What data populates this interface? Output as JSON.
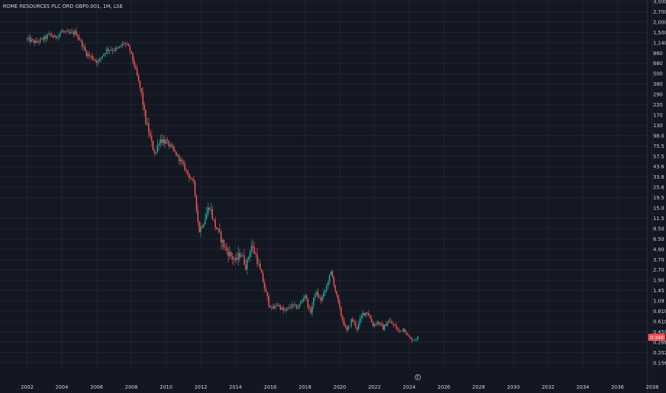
{
  "chart_data": {
    "type": "candlestick",
    "title": "ROME RESOURCES PLC ORD GBP0.001, 1M, LSE",
    "y_scale": "log",
    "grid": true,
    "y_ticks": [
      "3,500",
      "2,700",
      "2,000",
      "1,500",
      "1,140",
      "860",
      "660",
      "500",
      "380",
      "290",
      "220",
      "170",
      "130",
      "98.0",
      "75.5",
      "57.5",
      "43.6",
      "33.6",
      "25.6",
      "19.5",
      "15.0",
      "11.5",
      "8.50",
      "6.50",
      "4.90",
      "3.70",
      "2.70",
      "1.90",
      "1.45",
      "1.09",
      "0.810",
      "0.610",
      "0.450",
      "0.266",
      "0.202",
      "0.156"
    ],
    "x_ticks": [
      "2002",
      "2004",
      "2006",
      "2008",
      "2010",
      "2012",
      "2014",
      "2016",
      "2018",
      "2020",
      "2022",
      "2024",
      "2026",
      "2028",
      "2030",
      "2032",
      "2034",
      "2036",
      "2038"
    ],
    "xlim": [
      2001.5,
      2039.5
    ],
    "last_price_label": "0.340",
    "last_price": 0.34,
    "marker_label": "E",
    "marker_year": 2024.5,
    "colors": {
      "up": "#26a69a",
      "down": "#ef5350",
      "background": "#131722",
      "grid": "#2a2e39",
      "text": "#d1d4dc"
    },
    "anchors": [
      [
        2002.0,
        1250
      ],
      [
        2002.5,
        1150
      ],
      [
        2003.0,
        1280
      ],
      [
        2003.3,
        1420
      ],
      [
        2003.6,
        1300
      ],
      [
        2004.0,
        1550
      ],
      [
        2004.4,
        1450
      ],
      [
        2004.8,
        1500
      ],
      [
        2005.1,
        1150
      ],
      [
        2005.4,
        850
      ],
      [
        2005.8,
        750
      ],
      [
        2006.1,
        680
      ],
      [
        2006.3,
        800
      ],
      [
        2006.6,
        950
      ],
      [
        2007.2,
        950
      ],
      [
        2007.6,
        1150
      ],
      [
        2007.9,
        950
      ],
      [
        2008.1,
        700
      ],
      [
        2008.3,
        500
      ],
      [
        2008.6,
        280
      ],
      [
        2008.8,
        150
      ],
      [
        2008.95,
        120
      ],
      [
        2009.2,
        75
      ],
      [
        2009.4,
        62
      ],
      [
        2009.6,
        90
      ],
      [
        2010.0,
        85
      ],
      [
        2010.4,
        68
      ],
      [
        2010.8,
        52
      ],
      [
        2011.2,
        38
      ],
      [
        2011.6,
        28
      ],
      [
        2011.9,
        8.0
      ],
      [
        2012.2,
        11
      ],
      [
        2012.5,
        16
      ],
      [
        2012.8,
        9.5
      ],
      [
        2013.1,
        7.0
      ],
      [
        2013.4,
        5.0
      ],
      [
        2013.7,
        4.2
      ],
      [
        2014.0,
        3.5
      ],
      [
        2014.3,
        4.5
      ],
      [
        2014.6,
        3.0
      ],
      [
        2014.9,
        5.5
      ],
      [
        2015.2,
        4.0
      ],
      [
        2015.5,
        2.2
      ],
      [
        2015.8,
        1.2
      ],
      [
        2016.1,
        0.85
      ],
      [
        2016.4,
        1.0
      ],
      [
        2016.8,
        0.8
      ],
      [
        2017.2,
        0.95
      ],
      [
        2017.6,
        0.9
      ],
      [
        2018.0,
        1.3
      ],
      [
        2018.3,
        0.75
      ],
      [
        2018.6,
        1.4
      ],
      [
        2018.9,
        1.1
      ],
      [
        2019.2,
        1.5
      ],
      [
        2019.5,
        2.5
      ],
      [
        2019.8,
        1.3
      ],
      [
        2020.1,
        0.7
      ],
      [
        2020.4,
        0.45
      ],
      [
        2020.7,
        0.65
      ],
      [
        2021.0,
        0.5
      ],
      [
        2021.3,
        0.75
      ],
      [
        2021.6,
        0.8
      ],
      [
        2021.9,
        0.55
      ],
      [
        2022.2,
        0.6
      ],
      [
        2022.5,
        0.5
      ],
      [
        2022.8,
        0.62
      ],
      [
        2023.1,
        0.55
      ],
      [
        2023.4,
        0.45
      ],
      [
        2023.7,
        0.5
      ],
      [
        2023.9,
        0.38
      ],
      [
        2024.1,
        0.3
      ],
      [
        2024.3,
        0.3
      ],
      [
        2024.5,
        0.34
      ]
    ]
  }
}
